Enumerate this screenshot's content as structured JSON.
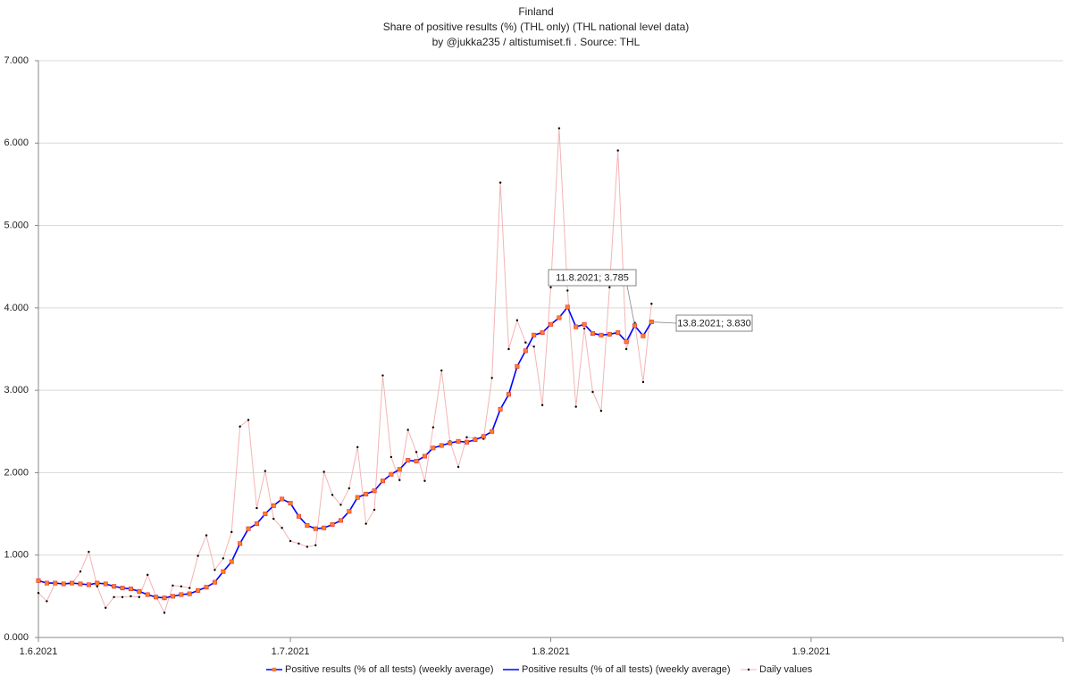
{
  "chart_data": {
    "type": "line",
    "title": "Finland",
    "subtitle": "Share of positive results (%)  (THL only)  (THL national level data)",
    "byline": "by @jukka235 / altistumiset.fi . Source: THL",
    "x": [
      "1.6.2021",
      "2.6.2021",
      "3.6.2021",
      "4.6.2021",
      "5.6.2021",
      "6.6.2021",
      "7.6.2021",
      "8.6.2021",
      "9.6.2021",
      "10.6.2021",
      "11.6.2021",
      "12.6.2021",
      "13.6.2021",
      "14.6.2021",
      "15.6.2021",
      "16.6.2021",
      "17.6.2021",
      "18.6.2021",
      "19.6.2021",
      "20.6.2021",
      "21.6.2021",
      "22.6.2021",
      "23.6.2021",
      "24.6.2021",
      "25.6.2021",
      "26.6.2021",
      "27.6.2021",
      "28.6.2021",
      "29.6.2021",
      "30.6.2021",
      "1.7.2021",
      "2.7.2021",
      "3.7.2021",
      "4.7.2021",
      "5.7.2021",
      "6.7.2021",
      "7.7.2021",
      "8.7.2021",
      "9.7.2021",
      "10.7.2021",
      "11.7.2021",
      "12.7.2021",
      "13.7.2021",
      "14.7.2021",
      "15.7.2021",
      "16.7.2021",
      "17.7.2021",
      "18.7.2021",
      "19.7.2021",
      "20.7.2021",
      "21.7.2021",
      "22.7.2021",
      "23.7.2021",
      "24.7.2021",
      "25.7.2021",
      "26.7.2021",
      "27.7.2021",
      "28.7.2021",
      "29.7.2021",
      "30.7.2021",
      "31.7.2021",
      "1.8.2021",
      "2.8.2021",
      "3.8.2021",
      "4.8.2021",
      "5.8.2021",
      "6.8.2021",
      "7.8.2021",
      "8.8.2021",
      "9.8.2021",
      "10.8.2021",
      "11.8.2021",
      "12.8.2021",
      "13.8.2021"
    ],
    "series": [
      {
        "name": "Positive results (% of all tests) (weekly average)",
        "color": "#ff7f27",
        "style": "markers",
        "values": [
          0.69,
          0.66,
          0.66,
          0.65,
          0.66,
          0.65,
          0.64,
          0.66,
          0.65,
          0.62,
          0.6,
          0.59,
          0.56,
          0.52,
          0.49,
          0.48,
          0.5,
          0.52,
          0.53,
          0.57,
          0.61,
          0.67,
          0.8,
          0.92,
          1.14,
          1.32,
          1.38,
          1.5,
          1.6,
          1.68,
          1.63,
          1.47,
          1.36,
          1.32,
          1.33,
          1.37,
          1.42,
          1.53,
          1.7,
          1.74,
          1.78,
          1.9,
          1.98,
          2.04,
          2.15,
          2.14,
          2.2,
          2.3,
          2.33,
          2.36,
          2.38,
          2.37,
          2.4,
          2.44,
          2.5,
          2.77,
          2.95,
          3.29,
          3.48,
          3.67,
          3.7,
          3.8,
          3.88,
          4.01,
          3.77,
          3.8,
          3.69,
          3.67,
          3.68,
          3.7,
          3.59,
          3.785,
          3.66,
          3.83
        ]
      },
      {
        "name": "Positive results (% of all tests) (weekly average)",
        "color": "#0000ff",
        "style": "line",
        "values": [
          0.69,
          0.66,
          0.66,
          0.65,
          0.66,
          0.65,
          0.64,
          0.66,
          0.65,
          0.62,
          0.6,
          0.59,
          0.56,
          0.52,
          0.49,
          0.48,
          0.5,
          0.52,
          0.53,
          0.57,
          0.61,
          0.67,
          0.8,
          0.92,
          1.14,
          1.32,
          1.38,
          1.5,
          1.6,
          1.68,
          1.63,
          1.47,
          1.36,
          1.32,
          1.33,
          1.37,
          1.42,
          1.53,
          1.7,
          1.74,
          1.78,
          1.9,
          1.98,
          2.04,
          2.15,
          2.14,
          2.2,
          2.3,
          2.33,
          2.36,
          2.38,
          2.37,
          2.4,
          2.44,
          2.5,
          2.77,
          2.95,
          3.29,
          3.48,
          3.67,
          3.7,
          3.8,
          3.88,
          4.01,
          3.77,
          3.8,
          3.69,
          3.67,
          3.68,
          3.7,
          3.59,
          3.785,
          3.66,
          3.83
        ]
      },
      {
        "name": "Daily values",
        "color": "#f4b4b4",
        "marker_color": "#000000",
        "style": "line-dots",
        "values": [
          0.54,
          0.44,
          0.66,
          0.65,
          0.65,
          0.8,
          1.04,
          0.62,
          0.36,
          0.49,
          0.49,
          0.5,
          0.49,
          0.76,
          0.5,
          0.3,
          0.63,
          0.62,
          0.6,
          0.99,
          1.24,
          0.82,
          0.96,
          1.28,
          2.56,
          2.64,
          1.57,
          2.02,
          1.44,
          1.33,
          1.17,
          1.14,
          1.1,
          1.12,
          2.01,
          1.73,
          1.61,
          1.81,
          2.31,
          1.38,
          1.55,
          3.18,
          2.19,
          1.91,
          2.52,
          2.25,
          1.9,
          2.55,
          3.24,
          2.38,
          2.07,
          2.43,
          2.42,
          2.41,
          3.15,
          5.52,
          3.5,
          3.85,
          3.58,
          3.53,
          2.82,
          4.25,
          6.18,
          4.21,
          2.8,
          3.75,
          2.98,
          2.75,
          4.25,
          5.91,
          3.5,
          3.82,
          3.1,
          4.05
        ]
      }
    ],
    "annotations": [
      {
        "text": "11.8.2021; 3.785"
      },
      {
        "text": "13.8.2021; 3.830"
      }
    ],
    "xlim": [
      "1.6.2021",
      "1.10.2021"
    ],
    "xticks": [
      "1.6.2021",
      "1.7.2021",
      "1.8.2021",
      "1.9.2021"
    ],
    "ylim": [
      0,
      7
    ],
    "yticks": [
      {
        "value": 0,
        "label": "0.000"
      },
      {
        "value": 1,
        "label": "1.000"
      },
      {
        "value": 2,
        "label": "2.000"
      },
      {
        "value": 3,
        "label": "3.000"
      },
      {
        "value": 4,
        "label": "4.000"
      },
      {
        "value": 5,
        "label": "5.000"
      },
      {
        "value": 6,
        "label": "6.000"
      },
      {
        "value": 7,
        "label": "7.000"
      }
    ],
    "grid": true,
    "legend": "bottom"
  }
}
